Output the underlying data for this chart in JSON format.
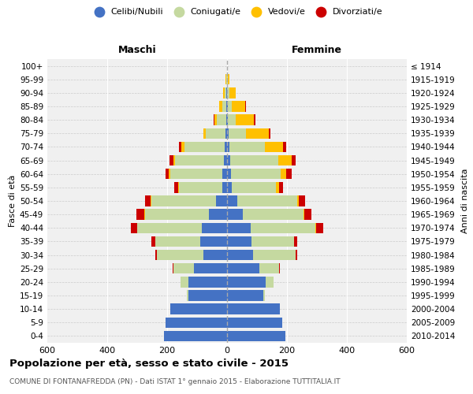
{
  "age_groups": [
    "0-4",
    "5-9",
    "10-14",
    "15-19",
    "20-24",
    "25-29",
    "30-34",
    "35-39",
    "40-44",
    "45-49",
    "50-54",
    "55-59",
    "60-64",
    "65-69",
    "70-74",
    "75-79",
    "80-84",
    "85-89",
    "90-94",
    "95-99",
    "100+"
  ],
  "birth_years": [
    "2010-2014",
    "2005-2009",
    "2000-2004",
    "1995-1999",
    "1990-1994",
    "1985-1989",
    "1980-1984",
    "1975-1979",
    "1970-1974",
    "1965-1969",
    "1960-1964",
    "1955-1959",
    "1950-1954",
    "1945-1949",
    "1940-1944",
    "1935-1939",
    "1930-1934",
    "1925-1929",
    "1920-1924",
    "1915-1919",
    "≤ 1914"
  ],
  "males": {
    "celibi": [
      210,
      205,
      190,
      130,
      130,
      110,
      80,
      90,
      85,
      60,
      38,
      16,
      15,
      10,
      8,
      5,
      3,
      2,
      2,
      1,
      0
    ],
    "coniugati": [
      0,
      0,
      0,
      5,
      25,
      70,
      155,
      150,
      215,
      215,
      215,
      145,
      175,
      165,
      135,
      65,
      30,
      15,
      5,
      2,
      0
    ],
    "vedovi": [
      0,
      0,
      0,
      0,
      0,
      0,
      0,
      0,
      0,
      2,
      2,
      2,
      5,
      5,
      10,
      8,
      10,
      10,
      5,
      1,
      0
    ],
    "divorziati": [
      0,
      0,
      0,
      0,
      0,
      2,
      5,
      12,
      20,
      25,
      20,
      14,
      10,
      12,
      8,
      2,
      1,
      0,
      0,
      0,
      0
    ]
  },
  "females": {
    "nubili": [
      195,
      185,
      175,
      120,
      130,
      108,
      88,
      82,
      78,
      52,
      33,
      16,
      13,
      10,
      7,
      4,
      2,
      2,
      1,
      1,
      0
    ],
    "coniugate": [
      0,
      0,
      0,
      5,
      25,
      65,
      140,
      142,
      218,
      202,
      202,
      147,
      165,
      162,
      120,
      60,
      28,
      14,
      7,
      2,
      0
    ],
    "vedove": [
      0,
      0,
      0,
      0,
      0,
      0,
      0,
      0,
      2,
      3,
      5,
      10,
      20,
      45,
      60,
      75,
      60,
      45,
      20,
      5,
      1
    ],
    "divorziate": [
      0,
      0,
      0,
      0,
      0,
      2,
      5,
      10,
      22,
      25,
      20,
      15,
      18,
      12,
      10,
      5,
      5,
      2,
      0,
      0,
      0
    ]
  },
  "colors": {
    "celibi": "#4472c4",
    "coniugati": "#c5d9a0",
    "vedovi": "#ffc000",
    "divorziati": "#cc0000"
  },
  "xlim": 600,
  "title": "Popolazione per età, sesso e stato civile - 2015",
  "subtitle": "COMUNE DI FONTANAFREDDA (PN) - Dati ISTAT 1° gennaio 2015 - Elaborazione TUTTITALIA.IT",
  "ylabel_left": "Fasce di età",
  "ylabel_right": "Anni di nascita",
  "xlabel_left": "Maschi",
  "xlabel_right": "Femmine",
  "legend_labels": [
    "Celibi/Nubili",
    "Coniugati/e",
    "Vedovi/e",
    "Divorziati/e"
  ],
  "bg_color": "#f0f0f0"
}
